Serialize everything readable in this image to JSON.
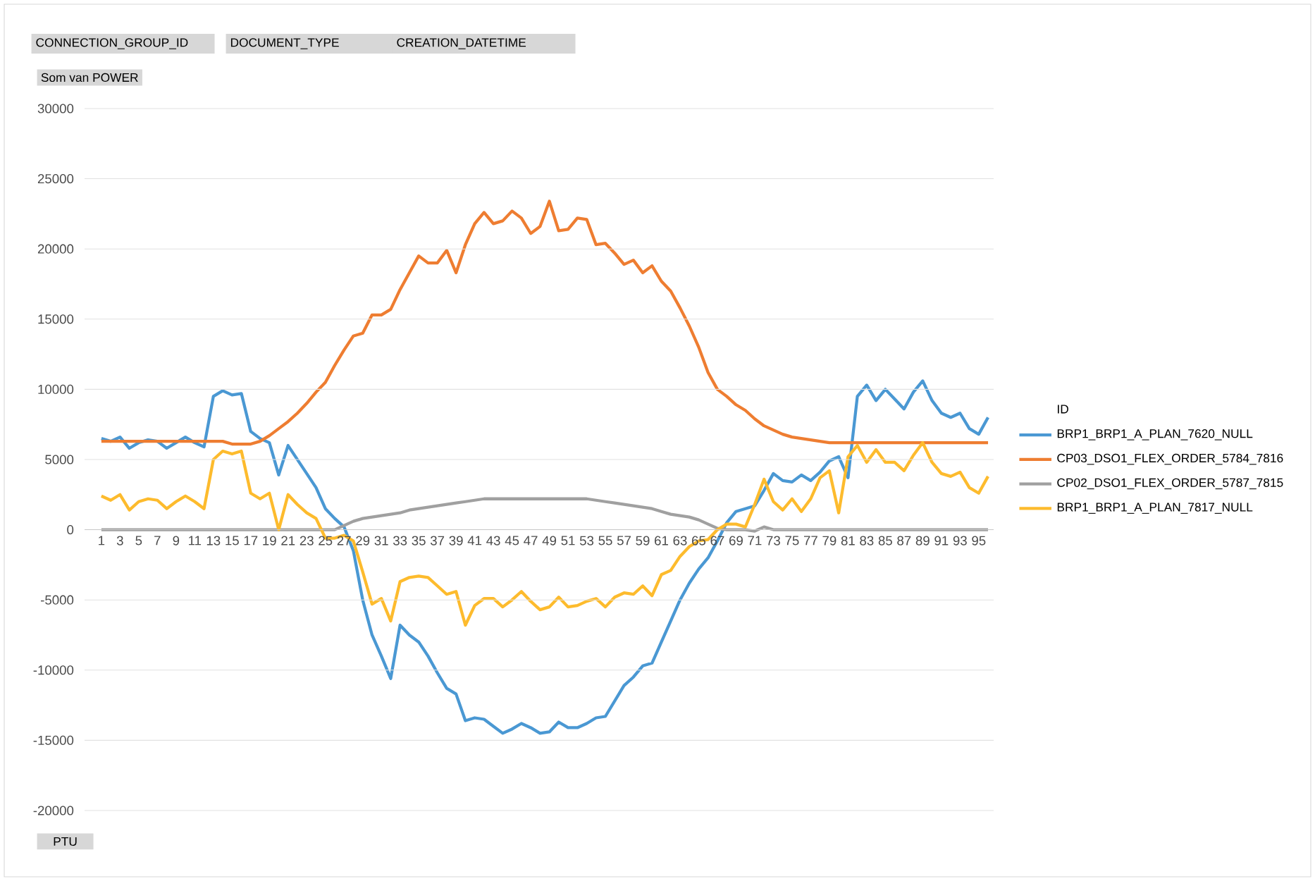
{
  "chart_data": {
    "type": "line",
    "ylabel": "Som van POWER",
    "xlabel": "PTU",
    "legend_title": "ID",
    "annotations": [
      "CONNECTION_GROUP_ID",
      "DOCUMENT_TYPE",
      "CREATION_DATETIME"
    ],
    "categories": [
      "1",
      null,
      "3",
      null,
      "5",
      null,
      "7",
      null,
      "9",
      null,
      "11",
      null,
      "13",
      null,
      "15",
      null,
      "17",
      null,
      "19",
      null,
      "21",
      null,
      "23",
      null,
      "25",
      null,
      "27",
      null,
      "29",
      null,
      "31",
      null,
      "33",
      null,
      "35",
      null,
      "37",
      null,
      "39",
      null,
      "41",
      null,
      "43",
      null,
      "45",
      null,
      "47",
      null,
      "49",
      null,
      "51",
      null,
      "53",
      null,
      "55",
      null,
      "57",
      null,
      "59",
      null,
      "61",
      null,
      "63",
      null,
      "65",
      null,
      "67",
      null,
      "69",
      null,
      "71",
      null,
      "73",
      null,
      "75",
      null,
      "77",
      null,
      "79",
      null,
      "81",
      null,
      "83",
      null,
      "85",
      null,
      "87",
      null,
      "89",
      null,
      "91",
      null,
      "93",
      null,
      "95",
      null
    ],
    "ylim": [
      -20000,
      30000
    ],
    "yticks": [
      -20000,
      -15000,
      -10000,
      -5000,
      0,
      5000,
      10000,
      15000,
      20000,
      25000,
      30000
    ],
    "grid": "y",
    "legend": "right",
    "marker": "none",
    "line_style": "solid",
    "series": [
      {
        "name": "BRP1_BRP1_A_PLAN_7620_NULL",
        "color": "#4a98d3",
        "values": [
          6500,
          6300,
          6600,
          5800,
          6200,
          6400,
          6300,
          5800,
          6200,
          6600,
          6200,
          5900,
          9500,
          9900,
          9600,
          9700,
          7000,
          6500,
          6200,
          3900,
          6000,
          5000,
          4000,
          3000,
          1500,
          800,
          200,
          -1500,
          -5000,
          -7500,
          -9000,
          -10600,
          -6800,
          -7500,
          -8000,
          -9000,
          -10200,
          -11300,
          -11700,
          -13600,
          -13400,
          -13500,
          -14000,
          -14500,
          -14200,
          -13800,
          -14100,
          -14500,
          -14400,
          -13700,
          -14100,
          -14100,
          -13800,
          -13400,
          -13300,
          -12200,
          -11100,
          -10500,
          -9700,
          -9500,
          -8000,
          -6500,
          -5000,
          -3800,
          -2800,
          -2000,
          -800,
          500,
          1300,
          1500,
          1700,
          2800,
          4000,
          3500,
          3400,
          3900,
          3500,
          4100,
          4900,
          5200,
          3700,
          9500,
          10300,
          9200,
          10000,
          9300,
          8600,
          9800,
          10600,
          9200,
          8300,
          8000,
          8300,
          7200,
          6800,
          8000
        ]
      },
      {
        "name": "CP03_DSO1_FLEX_ORDER_5784_7816",
        "color": "#ee7d31",
        "values": [
          6300,
          6300,
          6300,
          6300,
          6300,
          6300,
          6300,
          6300,
          6300,
          6300,
          6300,
          6300,
          6300,
          6300,
          6100,
          6100,
          6100,
          6300,
          6700,
          7200,
          7700,
          8300,
          9000,
          9800,
          10500,
          11700,
          12800,
          13800,
          14000,
          15300,
          15300,
          15700,
          17100,
          18300,
          19500,
          19000,
          19000,
          19900,
          18300,
          20300,
          21800,
          22600,
          21800,
          22000,
          22700,
          22200,
          21100,
          21600,
          23400,
          21300,
          21400,
          22200,
          22100,
          20300,
          20400,
          19700,
          18900,
          19200,
          18300,
          18800,
          17700,
          17000,
          15800,
          14500,
          13000,
          11200,
          10000,
          9500,
          8900,
          8500,
          7900,
          7400,
          7100,
          6800,
          6600,
          6500,
          6400,
          6300,
          6200,
          6200,
          6200,
          6200,
          6200,
          6200,
          6200,
          6200,
          6200,
          6200,
          6200,
          6200,
          6200,
          6200,
          6200,
          6200,
          6200,
          6200
        ]
      },
      {
        "name": "CP02_DSO1_FLEX_ORDER_5787_7815",
        "color": "#a0a0a0",
        "values": [
          0,
          0,
          0,
          0,
          0,
          0,
          0,
          0,
          0,
          0,
          0,
          0,
          0,
          0,
          0,
          0,
          0,
          0,
          0,
          0,
          0,
          0,
          0,
          0,
          0,
          0,
          300,
          600,
          800,
          900,
          1000,
          1100,
          1200,
          1400,
          1500,
          1600,
          1700,
          1800,
          1900,
          2000,
          2100,
          2200,
          2200,
          2200,
          2200,
          2200,
          2200,
          2200,
          2200,
          2200,
          2200,
          2200,
          2200,
          2100,
          2000,
          1900,
          1800,
          1700,
          1600,
          1500,
          1300,
          1100,
          1000,
          900,
          700,
          400,
          100,
          0,
          0,
          0,
          -100,
          200,
          0,
          0,
          0,
          0,
          0,
          0,
          0,
          0,
          0,
          0,
          0,
          0,
          0,
          0,
          0,
          0,
          0,
          0,
          0,
          0,
          0,
          0,
          0,
          0
        ]
      },
      {
        "name": "BRP1_BRP1_A_PLAN_7817_NULL",
        "color": "#fdbb2d",
        "values": [
          2400,
          2100,
          2500,
          1400,
          2000,
          2200,
          2100,
          1500,
          2000,
          2400,
          2000,
          1500,
          5000,
          5600,
          5400,
          5600,
          2600,
          2200,
          2600,
          0,
          2500,
          1800,
          1200,
          800,
          -600,
          -600,
          -400,
          -800,
          -3000,
          -5300,
          -4900,
          -6500,
          -3700,
          -3400,
          -3300,
          -3400,
          -4000,
          -4600,
          -4400,
          -6800,
          -5400,
          -4900,
          -4900,
          -5500,
          -5000,
          -4400,
          -5100,
          -5700,
          -5500,
          -4800,
          -5500,
          -5400,
          -5100,
          -4900,
          -5500,
          -4800,
          -4500,
          -4600,
          -4000,
          -4700,
          -3200,
          -2900,
          -1900,
          -1200,
          -800,
          -700,
          0,
          400,
          400,
          200,
          1800,
          3600,
          2000,
          1400,
          2200,
          1300,
          2200,
          3700,
          4200,
          1200,
          5200,
          6000,
          4800,
          5700,
          4800,
          4800,
          4200,
          5300,
          6200,
          4800,
          4000,
          3800,
          4100,
          3000,
          2600,
          3800
        ]
      }
    ]
  }
}
